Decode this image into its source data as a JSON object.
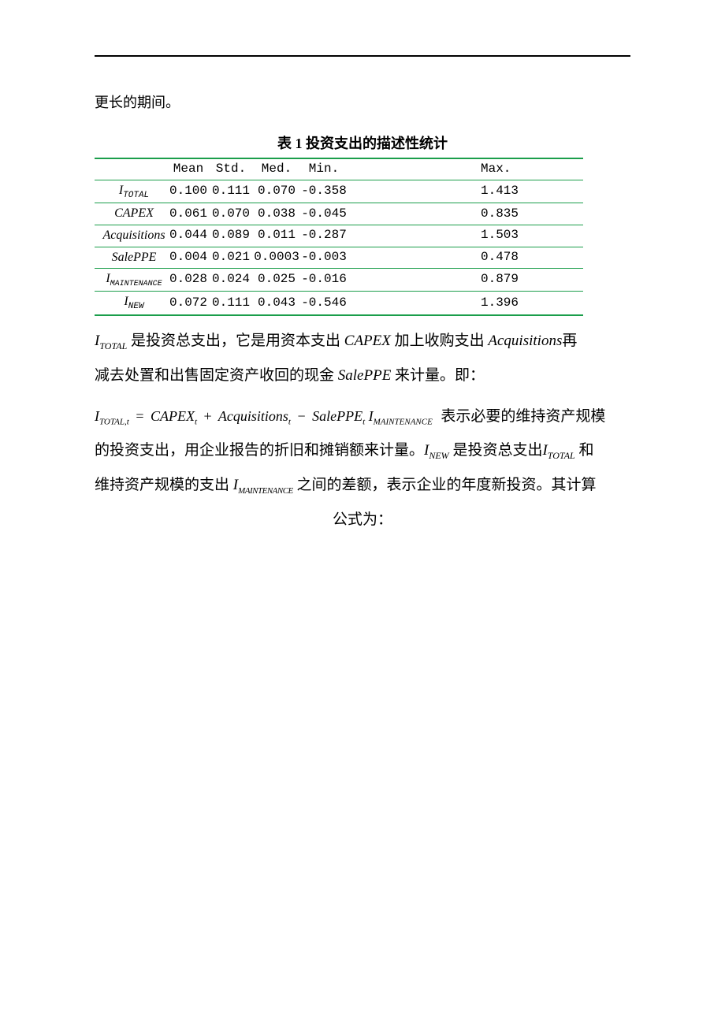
{
  "page": {
    "intro_fragment": "更长的期间。",
    "top_rule_color": "#000000"
  },
  "table": {
    "title": "表 1    投资支出的描述性统计",
    "header_border_color": "#1b9e4b",
    "columns": [
      "Mean",
      "Std.",
      "Med.",
      "Min.",
      "Max."
    ],
    "rows": [
      {
        "name_html": "I<sub>TOTAL</sub>",
        "name_plain": "I_TOTAL",
        "mean": "0.100",
        "std": "0.111",
        "med": "0.070",
        "min": "-0.358",
        "max": "1.413"
      },
      {
        "name_html": "CAPEX",
        "name_plain": "CAPEX",
        "mean": "0.061",
        "std": "0.070",
        "med": "0.038",
        "min": "-0.045",
        "max": "0.835"
      },
      {
        "name_html": "Acquisitions",
        "name_plain": "Acquisitions",
        "mean": "0.044",
        "std": "0.089",
        "med": "0.011",
        "min": "-0.287",
        "max": "1.503"
      },
      {
        "name_html": "SalePPE",
        "name_plain": "SalePPE",
        "mean": "0.004",
        "std": "0.021",
        "med": "0.0003",
        "min": "-0.003",
        "max": "0.478"
      },
      {
        "name_html": "I<sub>MAINTENANCE</sub>",
        "name_plain": "I_MAINTENANCE",
        "mean": "0.028",
        "std": "0.024",
        "med": "0.025",
        "min": "-0.016",
        "max": "0.879"
      },
      {
        "name_html": "I<sub>NEW</sub>",
        "name_plain": "I_NEW",
        "mean": "0.072",
        "std": "0.111",
        "med": "0.043",
        "min": "-0.546",
        "max": "1.396"
      }
    ]
  },
  "body": {
    "p1a": "I",
    "p1a_sub": "TOTAL",
    "p1b": " 是投资总支出，它是用资本支出 ",
    "p1c": "CAPEX",
    "p1d": "  加上收购支出 ",
    "p1e": "Acquisitions",
    "p1f": "再",
    "p2a": "减去处置和出售固定资产收回的现金 ",
    "p2b": "SalePPE",
    "p2c": " 来计量。即：",
    "formula_lhs": "I",
    "formula_lhs_sub": "TOTAL,t",
    "formula_eq": "=",
    "formula_t1": "CAPEX",
    "formula_t1_sub": "t",
    "formula_plus": "+",
    "formula_t2": "Acquisitions",
    "formula_t2_sub": "t",
    "formula_minus": "−",
    "formula_t3": "SalePPE",
    "formula_t3_sub": "t",
    "formula_t4": "I",
    "formula_t4_sub": "MAINTENANCE",
    "formula_tail_zh": " 表示必要的维持资产规模",
    "p3a": "的投资支出，用企业报告的折旧和摊销额来计量。",
    "p3b": "I",
    "p3b_sub": "NEW",
    "p3c": " 是投资总支出",
    "p3d": "I",
    "p3d_sub": "TOTAL",
    "p3e": " 和",
    "p4a": "维持资产规模的支出 ",
    "p4b": "I",
    "p4b_sub": "MAINTENANCE",
    "p4c": " 之间的差额，表示企业的年度新投资。其计算",
    "p5": "公式为："
  }
}
